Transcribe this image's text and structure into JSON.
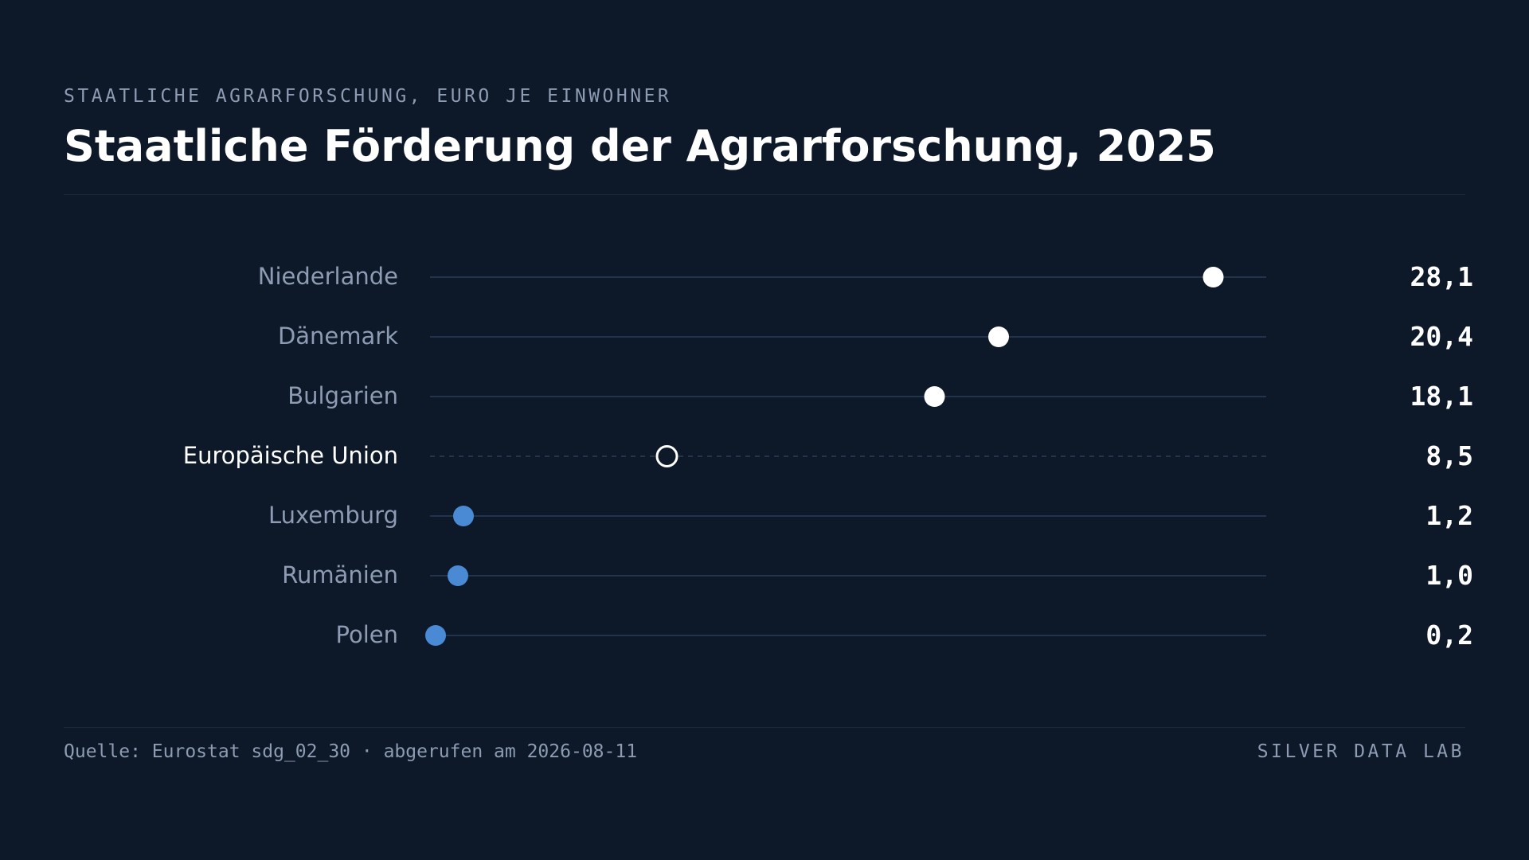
{
  "header": {
    "kicker": "STAATLICHE AGRARFORSCHUNG, EURO JE EINWOHNER",
    "title": "Staatliche Förderung der Agrarforschung, 2025"
  },
  "footer": {
    "source": "Quelle: Eurostat sdg_02_30 · abgerufen am 2026-08-11",
    "brand": "SILVER DATA LAB"
  },
  "colors": {
    "background": "#0d1929",
    "high_dot": "#ffffff",
    "low_dot": "#4a8ad4",
    "reference_dot_stroke": "#ffffff",
    "track": "#22344d",
    "label": "#8d9bb3",
    "label_highlight": "#ffffff",
    "value_text": "#ffffff"
  },
  "chart_data": {
    "type": "scatter",
    "subtype": "dot-plot",
    "title": "Staatliche Förderung der Agrarforschung, 2025",
    "unit": "Euro je Einwohner",
    "xlim": [
      0,
      30
    ],
    "grid": false,
    "legend": "none",
    "categories": [
      "Niederlande",
      "Dänemark",
      "Bulgarien",
      "Europäische Union",
      "Luxemburg",
      "Rumänien",
      "Polen"
    ],
    "values": [
      28.1,
      20.4,
      18.1,
      8.5,
      1.2,
      1.0,
      0.2
    ],
    "value_labels": [
      "28,1",
      "20,4",
      "18,1",
      "8,5",
      "1,2",
      "1,0",
      "0,2"
    ],
    "reference_category": "Europäische Union",
    "above_reference_color": "#ffffff",
    "below_reference_color": "#4a8ad4"
  }
}
